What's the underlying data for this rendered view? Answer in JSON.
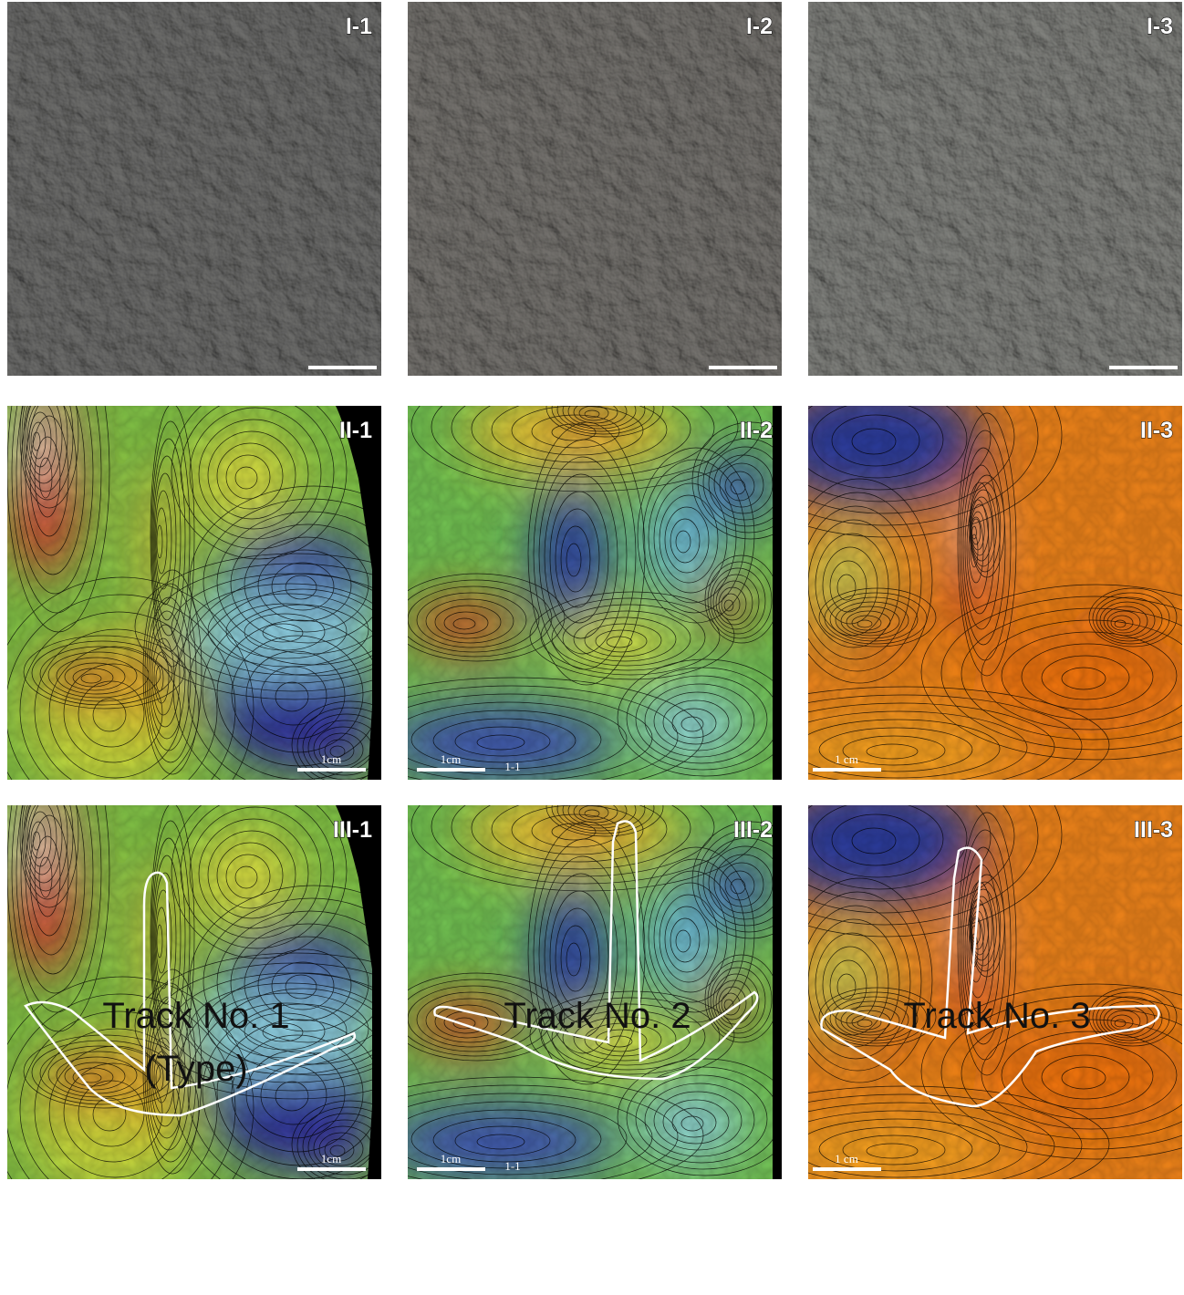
{
  "panels": [
    [
      {
        "label": "I-1"
      },
      {
        "label": "I-2"
      },
      {
        "label": "I-3"
      }
    ],
    [
      {
        "label": "II-1",
        "scale": "1cm"
      },
      {
        "label": "II-2",
        "scale": "1cm",
        "note": "1-1"
      },
      {
        "label": "II-3",
        "scale": "1 cm"
      }
    ],
    [
      {
        "label": "III-1",
        "scale": "1cm"
      },
      {
        "label": "III-2",
        "scale": "1cm",
        "note": "1-1"
      },
      {
        "label": "III-3",
        "scale": "1 cm"
      }
    ]
  ],
  "captions": [
    {
      "lines": [
        "Track No. 1",
        "(Type)"
      ]
    },
    {
      "lines": [
        "Track No. 2"
      ]
    },
    {
      "lines": [
        "Track No. 3"
      ]
    }
  ]
}
